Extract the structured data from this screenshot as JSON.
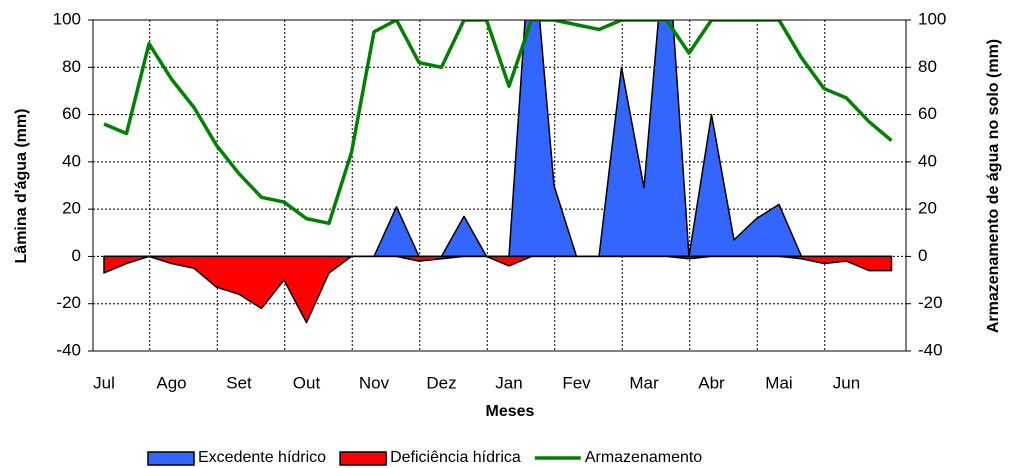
{
  "chart_data": {
    "type": "area_line",
    "x_label": "Meses",
    "y_label": "Lâmina d'água (mm)",
    "y2_label": "Armazenamento de água no solo (mm)",
    "categories": [
      "Jul",
      null,
      null,
      "Ago",
      null,
      null,
      "Set",
      null,
      null,
      "Out",
      null,
      null,
      "Nov",
      null,
      null,
      "Dez",
      null,
      null,
      "Jan",
      null,
      null,
      "Fev",
      null,
      null,
      "Mar",
      null,
      null,
      "Abr",
      null,
      null,
      "Mai",
      null,
      null,
      "Jun",
      null,
      null
    ],
    "series": [
      {
        "name": "Excedente hídrico",
        "type": "area",
        "color": "#3366ff",
        "axis": "y",
        "values": [
          0,
          0,
          0,
          0,
          0,
          0,
          0,
          0,
          0,
          0,
          0,
          0,
          0,
          21,
          0,
          0,
          17,
          0,
          0,
          140,
          30,
          0,
          0,
          80,
          29,
          140,
          0,
          60,
          7,
          16,
          22,
          0,
          0,
          0,
          0,
          0
        ]
      },
      {
        "name": "Deficiência hídrica",
        "type": "area",
        "color": "#ff0000",
        "axis": "y",
        "values": [
          -7,
          -3,
          0,
          -3,
          -5,
          -13,
          -16,
          -22,
          -10,
          -28,
          -7,
          0,
          0,
          0,
          -2,
          -1,
          0,
          0,
          -4,
          0,
          0,
          0,
          0,
          0,
          0,
          0,
          -1,
          0,
          0,
          0,
          0,
          -1,
          -3,
          -2,
          -6,
          -6
        ]
      },
      {
        "name": "Armazenamento",
        "type": "line",
        "color": "#008000",
        "axis": "y2",
        "values": [
          56,
          52,
          90,
          75,
          63,
          47,
          35,
          25,
          23,
          16,
          14,
          44,
          95,
          100,
          82,
          80,
          100,
          100,
          72,
          100,
          100,
          98,
          96,
          100,
          100,
          100,
          86,
          100,
          100,
          100,
          100,
          84,
          71,
          67,
          57,
          49
        ]
      }
    ],
    "ylim": [
      -40,
      100
    ],
    "yticks": [
      -40,
      -20,
      0,
      20,
      40,
      60,
      80,
      100
    ],
    "y2lim": [
      -40,
      100
    ],
    "y2ticks": [
      -40,
      -20,
      0,
      20,
      40,
      60,
      80,
      100
    ],
    "grid": true,
    "legend": "bottom"
  }
}
